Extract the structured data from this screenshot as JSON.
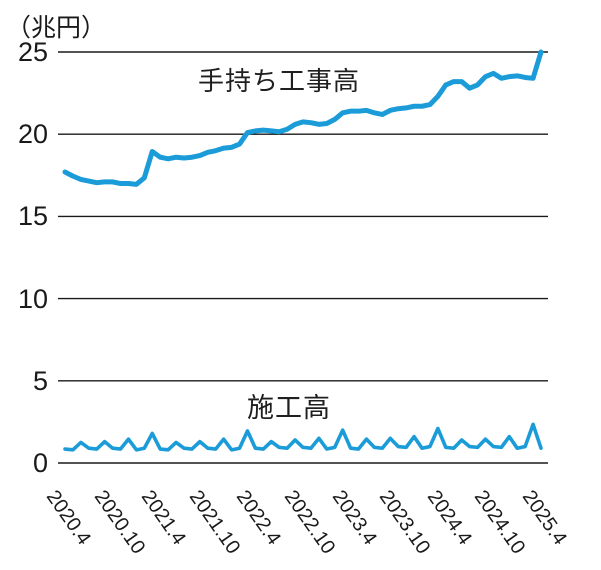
{
  "chart_data": {
    "type": "line",
    "title": "",
    "unit_label": "（兆円）",
    "ylabel": "兆円 (trillion yen)",
    "xlabel": "",
    "ylim": [
      0,
      25
    ],
    "y_ticks": [
      25,
      20,
      15,
      10,
      5,
      0
    ],
    "grid": "horizontal",
    "legend_position": "inline-labels",
    "x_frequency": "monthly",
    "x_tick_labels": [
      "2020.4",
      "2020.10",
      "2021.4",
      "2021.10",
      "2022.4",
      "2022.10",
      "2023.4",
      "2023.10",
      "2024.4",
      "2024.10",
      "2025.4"
    ],
    "months": [
      "2020.4",
      "2020.5",
      "2020.6",
      "2020.7",
      "2020.8",
      "2020.9",
      "2020.10",
      "2020.11",
      "2020.12",
      "2021.1",
      "2021.2",
      "2021.3",
      "2021.4",
      "2021.5",
      "2021.6",
      "2021.7",
      "2021.8",
      "2021.9",
      "2021.10",
      "2021.11",
      "2021.12",
      "2022.1",
      "2022.2",
      "2022.3",
      "2022.4",
      "2022.5",
      "2022.6",
      "2022.7",
      "2022.8",
      "2022.9",
      "2022.10",
      "2022.11",
      "2022.12",
      "2023.1",
      "2023.2",
      "2023.3",
      "2023.4",
      "2023.5",
      "2023.6",
      "2023.7",
      "2023.8",
      "2023.9",
      "2023.10",
      "2023.11",
      "2023.12",
      "2024.1",
      "2024.2",
      "2024.3",
      "2024.4",
      "2024.5",
      "2024.6",
      "2024.7",
      "2024.8",
      "2024.9",
      "2024.10",
      "2024.11",
      "2024.12",
      "2025.1",
      "2025.2",
      "2025.3",
      "2025.4"
    ],
    "series": [
      {
        "name": "手持ち工事高",
        "color": "#1b9cd8",
        "values": [
          17.7,
          17.45,
          17.25,
          17.15,
          17.05,
          17.1,
          17.1,
          17.0,
          17.0,
          16.95,
          17.35,
          18.95,
          18.6,
          18.5,
          18.6,
          18.55,
          18.6,
          18.7,
          18.9,
          19.0,
          19.15,
          19.2,
          19.4,
          20.1,
          20.2,
          20.25,
          20.2,
          20.15,
          20.3,
          20.6,
          20.75,
          20.7,
          20.6,
          20.65,
          20.9,
          21.3,
          21.4,
          21.4,
          21.45,
          21.3,
          21.2,
          21.45,
          21.55,
          21.6,
          21.7,
          21.7,
          21.8,
          22.3,
          23.0,
          23.2,
          23.2,
          22.8,
          23.0,
          23.5,
          23.7,
          23.4,
          23.5,
          23.55,
          23.45,
          23.4,
          25.0
        ]
      },
      {
        "name": "施工高",
        "color": "#1b9cd8",
        "values": [
          0.85,
          0.8,
          1.25,
          0.9,
          0.85,
          1.3,
          0.9,
          0.85,
          1.45,
          0.8,
          0.9,
          1.8,
          0.85,
          0.8,
          1.25,
          0.9,
          0.85,
          1.3,
          0.9,
          0.85,
          1.45,
          0.8,
          0.9,
          1.95,
          0.9,
          0.85,
          1.3,
          0.95,
          0.9,
          1.4,
          0.95,
          0.9,
          1.5,
          0.85,
          0.95,
          2.0,
          0.9,
          0.85,
          1.45,
          0.95,
          0.9,
          1.5,
          1.0,
          0.95,
          1.6,
          0.9,
          1.0,
          2.1,
          0.95,
          0.9,
          1.4,
          1.0,
          0.95,
          1.45,
          1.0,
          0.95,
          1.6,
          0.9,
          1.0,
          2.35,
          0.9
        ]
      }
    ],
    "colors": {
      "line": "#1b9cd8",
      "grid": "#1a1a1a",
      "text": "#1a1a1a",
      "background": "#ffffff"
    }
  }
}
